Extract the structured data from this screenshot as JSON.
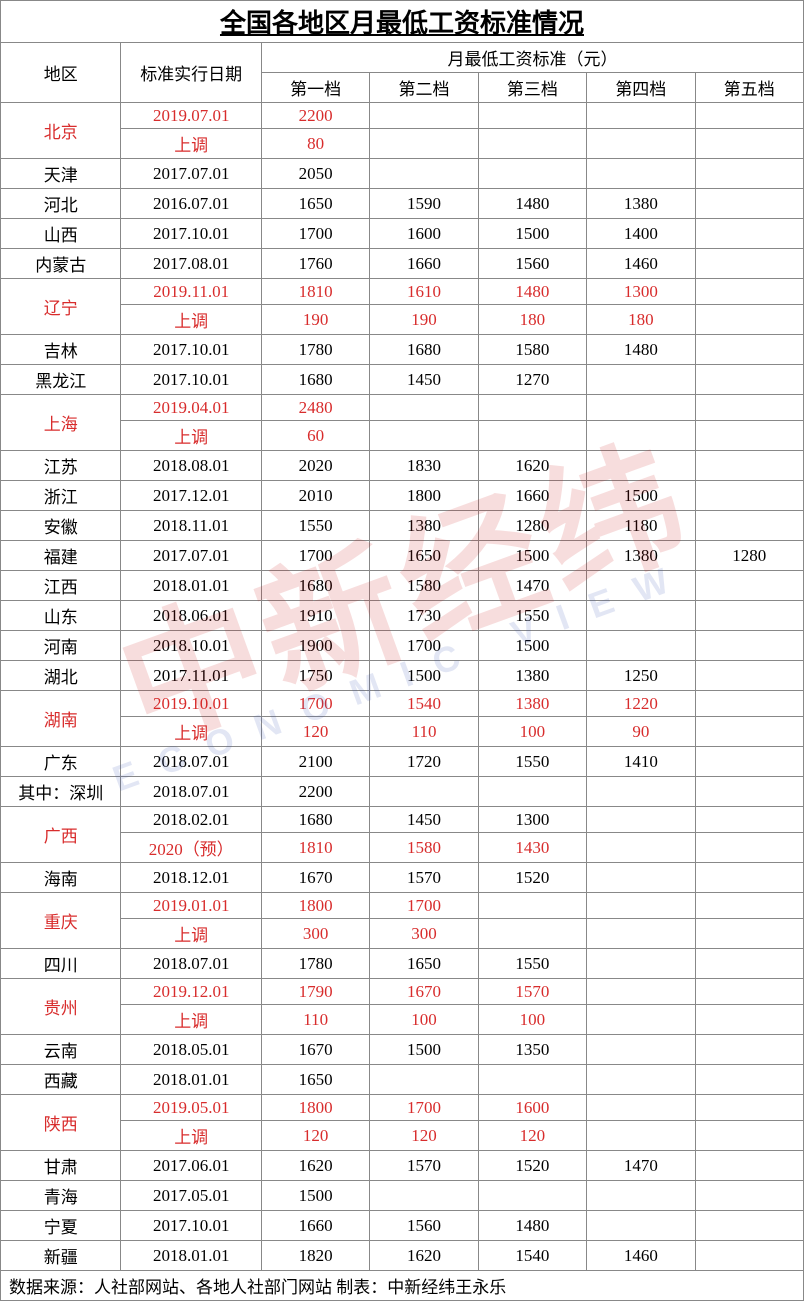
{
  "title": "全国各地区月最低工资标准情况",
  "colors": {
    "text": "#000000",
    "highlight": "#d82c2c",
    "border": "#888888",
    "background": "#ffffff",
    "watermark_main": "rgba(200,30,30,0.15)",
    "watermark_sub": "rgba(60,90,180,0.15)"
  },
  "watermark": {
    "main": "中新经纬",
    "sub": "ECONOMIC VIEW"
  },
  "header": {
    "region": "地区",
    "date": "标准实行日期",
    "group": "月最低工资标准（元）",
    "tiers": [
      "第一档",
      "第二档",
      "第三档",
      "第四档",
      "第五档"
    ]
  },
  "rows": [
    {
      "region": "北京",
      "regionRed": true,
      "rowspan": 2,
      "cells": [
        {
          "v": [
            "2019.07.01",
            "2200",
            "",
            "",
            "",
            ""
          ],
          "red": true
        },
        {
          "v": [
            "上调",
            "80",
            "",
            "",
            "",
            ""
          ],
          "red": true
        }
      ]
    },
    {
      "region": "天津",
      "cells": [
        {
          "v": [
            "2017.07.01",
            "2050",
            "",
            "",
            "",
            ""
          ]
        }
      ]
    },
    {
      "region": "河北",
      "cells": [
        {
          "v": [
            "2016.07.01",
            "1650",
            "1590",
            "1480",
            "1380",
            ""
          ]
        }
      ]
    },
    {
      "region": "山西",
      "cells": [
        {
          "v": [
            "2017.10.01",
            "1700",
            "1600",
            "1500",
            "1400",
            ""
          ]
        }
      ]
    },
    {
      "region": "内蒙古",
      "cells": [
        {
          "v": [
            "2017.08.01",
            "1760",
            "1660",
            "1560",
            "1460",
            ""
          ]
        }
      ]
    },
    {
      "region": "辽宁",
      "regionRed": true,
      "rowspan": 2,
      "cells": [
        {
          "v": [
            "2019.11.01",
            "1810",
            "1610",
            "1480",
            "1300",
            ""
          ],
          "red": true
        },
        {
          "v": [
            "上调",
            "190",
            "190",
            "180",
            "180",
            ""
          ],
          "red": true
        }
      ]
    },
    {
      "region": "吉林",
      "cells": [
        {
          "v": [
            "2017.10.01",
            "1780",
            "1680",
            "1580",
            "1480",
            ""
          ]
        }
      ]
    },
    {
      "region": "黑龙江",
      "cells": [
        {
          "v": [
            "2017.10.01",
            "1680",
            "1450",
            "1270",
            "",
            ""
          ]
        }
      ]
    },
    {
      "region": "上海",
      "regionRed": true,
      "rowspan": 2,
      "cells": [
        {
          "v": [
            "2019.04.01",
            "2480",
            "",
            "",
            "",
            ""
          ],
          "red": true
        },
        {
          "v": [
            "上调",
            "60",
            "",
            "",
            "",
            ""
          ],
          "red": true
        }
      ]
    },
    {
      "region": "江苏",
      "cells": [
        {
          "v": [
            "2018.08.01",
            "2020",
            "1830",
            "1620",
            "",
            ""
          ]
        }
      ]
    },
    {
      "region": "浙江",
      "cells": [
        {
          "v": [
            "2017.12.01",
            "2010",
            "1800",
            "1660",
            "1500",
            ""
          ]
        }
      ]
    },
    {
      "region": "安徽",
      "cells": [
        {
          "v": [
            "2018.11.01",
            "1550",
            "1380",
            "1280",
            "1180",
            ""
          ]
        }
      ]
    },
    {
      "region": "福建",
      "cells": [
        {
          "v": [
            "2017.07.01",
            "1700",
            "1650",
            "1500",
            "1380",
            "1280"
          ]
        }
      ]
    },
    {
      "region": "江西",
      "cells": [
        {
          "v": [
            "2018.01.01",
            "1680",
            "1580",
            "1470",
            "",
            ""
          ]
        }
      ]
    },
    {
      "region": "山东",
      "cells": [
        {
          "v": [
            "2018.06.01",
            "1910",
            "1730",
            "1550",
            "",
            ""
          ]
        }
      ]
    },
    {
      "region": "河南",
      "cells": [
        {
          "v": [
            "2018.10.01",
            "1900",
            "1700",
            "1500",
            "",
            ""
          ]
        }
      ]
    },
    {
      "region": "湖北",
      "cells": [
        {
          "v": [
            "2017.11.01",
            "1750",
            "1500",
            "1380",
            "1250",
            ""
          ]
        }
      ]
    },
    {
      "region": "湖南",
      "regionRed": true,
      "rowspan": 2,
      "cells": [
        {
          "v": [
            "2019.10.01",
            "1700",
            "1540",
            "1380",
            "1220",
            ""
          ],
          "red": true
        },
        {
          "v": [
            "上调",
            "120",
            "110",
            "100",
            "90",
            ""
          ],
          "red": true
        }
      ]
    },
    {
      "region": "广东",
      "cells": [
        {
          "v": [
            "2018.07.01",
            "2100",
            "1720",
            "1550",
            "1410",
            ""
          ]
        }
      ]
    },
    {
      "region": "其中：深圳",
      "cells": [
        {
          "v": [
            "2018.07.01",
            "2200",
            "",
            "",
            "",
            ""
          ]
        }
      ]
    },
    {
      "region": "广西",
      "regionRed": true,
      "rowspan": 2,
      "cells": [
        {
          "v": [
            "2018.02.01",
            "1680",
            "1450",
            "1300",
            "",
            ""
          ]
        },
        {
          "v": [
            "2020（预）",
            "1810",
            "1580",
            "1430",
            "",
            ""
          ],
          "red": true
        }
      ]
    },
    {
      "region": "海南",
      "cells": [
        {
          "v": [
            "2018.12.01",
            "1670",
            "1570",
            "1520",
            "",
            ""
          ]
        }
      ]
    },
    {
      "region": "重庆",
      "regionRed": true,
      "rowspan": 2,
      "cells": [
        {
          "v": [
            "2019.01.01",
            "1800",
            "1700",
            "",
            "",
            ""
          ],
          "red": true
        },
        {
          "v": [
            "上调",
            "300",
            "300",
            "",
            "",
            ""
          ],
          "red": true
        }
      ]
    },
    {
      "region": "四川",
      "cells": [
        {
          "v": [
            "2018.07.01",
            "1780",
            "1650",
            "1550",
            "",
            ""
          ]
        }
      ]
    },
    {
      "region": "贵州",
      "regionRed": true,
      "rowspan": 2,
      "cells": [
        {
          "v": [
            "2019.12.01",
            "1790",
            "1670",
            "1570",
            "",
            ""
          ],
          "red": true
        },
        {
          "v": [
            "上调",
            "110",
            "100",
            "100",
            "",
            ""
          ],
          "red": true
        }
      ]
    },
    {
      "region": "云南",
      "cells": [
        {
          "v": [
            "2018.05.01",
            "1670",
            "1500",
            "1350",
            "",
            ""
          ]
        }
      ]
    },
    {
      "region": "西藏",
      "cells": [
        {
          "v": [
            "2018.01.01",
            "1650",
            "",
            "",
            "",
            ""
          ]
        }
      ]
    },
    {
      "region": "陕西",
      "regionRed": true,
      "rowspan": 2,
      "cells": [
        {
          "v": [
            "2019.05.01",
            "1800",
            "1700",
            "1600",
            "",
            ""
          ],
          "red": true
        },
        {
          "v": [
            "上调",
            "120",
            "120",
            "120",
            "",
            ""
          ],
          "red": true
        }
      ]
    },
    {
      "region": "甘肃",
      "cells": [
        {
          "v": [
            "2017.06.01",
            "1620",
            "1570",
            "1520",
            "1470",
            ""
          ]
        }
      ]
    },
    {
      "region": "青海",
      "cells": [
        {
          "v": [
            "2017.05.01",
            "1500",
            "",
            "",
            "",
            ""
          ]
        }
      ]
    },
    {
      "region": "宁夏",
      "cells": [
        {
          "v": [
            "2017.10.01",
            "1660",
            "1560",
            "1480",
            "",
            ""
          ]
        }
      ]
    },
    {
      "region": "新疆",
      "cells": [
        {
          "v": [
            "2018.01.01",
            "1820",
            "1620",
            "1540",
            "1460",
            ""
          ]
        }
      ]
    }
  ],
  "source": "数据来源：人社部网站、各地人社部门网站  制表：中新经纬王永乐"
}
